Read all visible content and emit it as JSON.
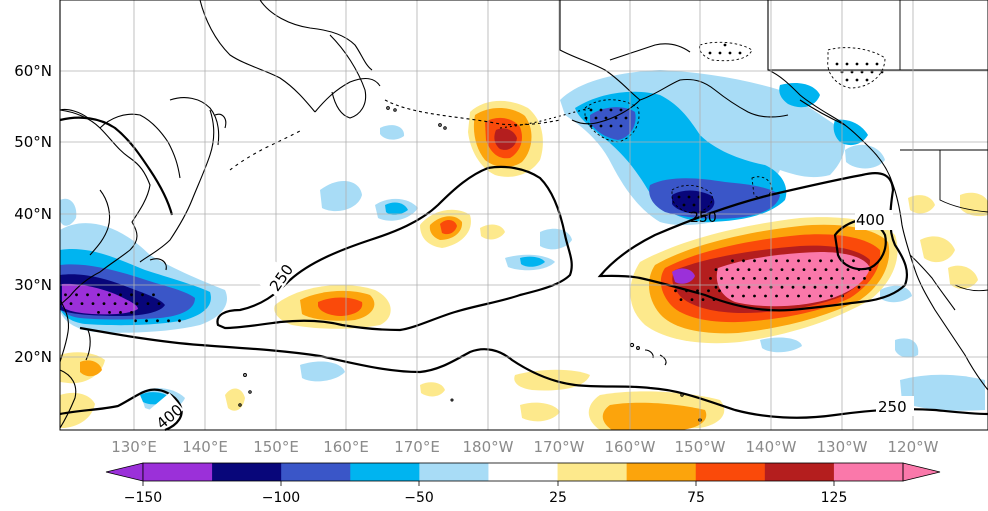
{
  "lat_labels": [
    "60°N",
    "50°N",
    "40°N",
    "30°N",
    "20°N"
  ],
  "lon_labels": [
    "130°E",
    "140°E",
    "150°E",
    "160°E",
    "170°E",
    "180°W",
    "170°W",
    "160°W",
    "150°W",
    "140°W",
    "130°W",
    "120°W"
  ],
  "contour_labels": [
    "250",
    "250",
    "400",
    "400",
    "250"
  ],
  "colorbar": {
    "colors": [
      "#9b30d9",
      "#08067a",
      "#3a56c8",
      "#00b4f0",
      "#a8dcf6",
      "#ffffff",
      "#fde98c",
      "#fca40c",
      "#fa4a0a",
      "#b41e1e",
      "#fa78aa"
    ],
    "tick_labels": [
      "−150",
      "−100",
      "−50",
      "25",
      "75",
      "125"
    ],
    "min_arrow_color": "#9b30d9",
    "max_arrow_color": "#fa78aa"
  },
  "colors": {
    "ocean": "#ffffff",
    "coast": "#000000",
    "grid": "#b0b0b0",
    "contour": "#000000"
  }
}
